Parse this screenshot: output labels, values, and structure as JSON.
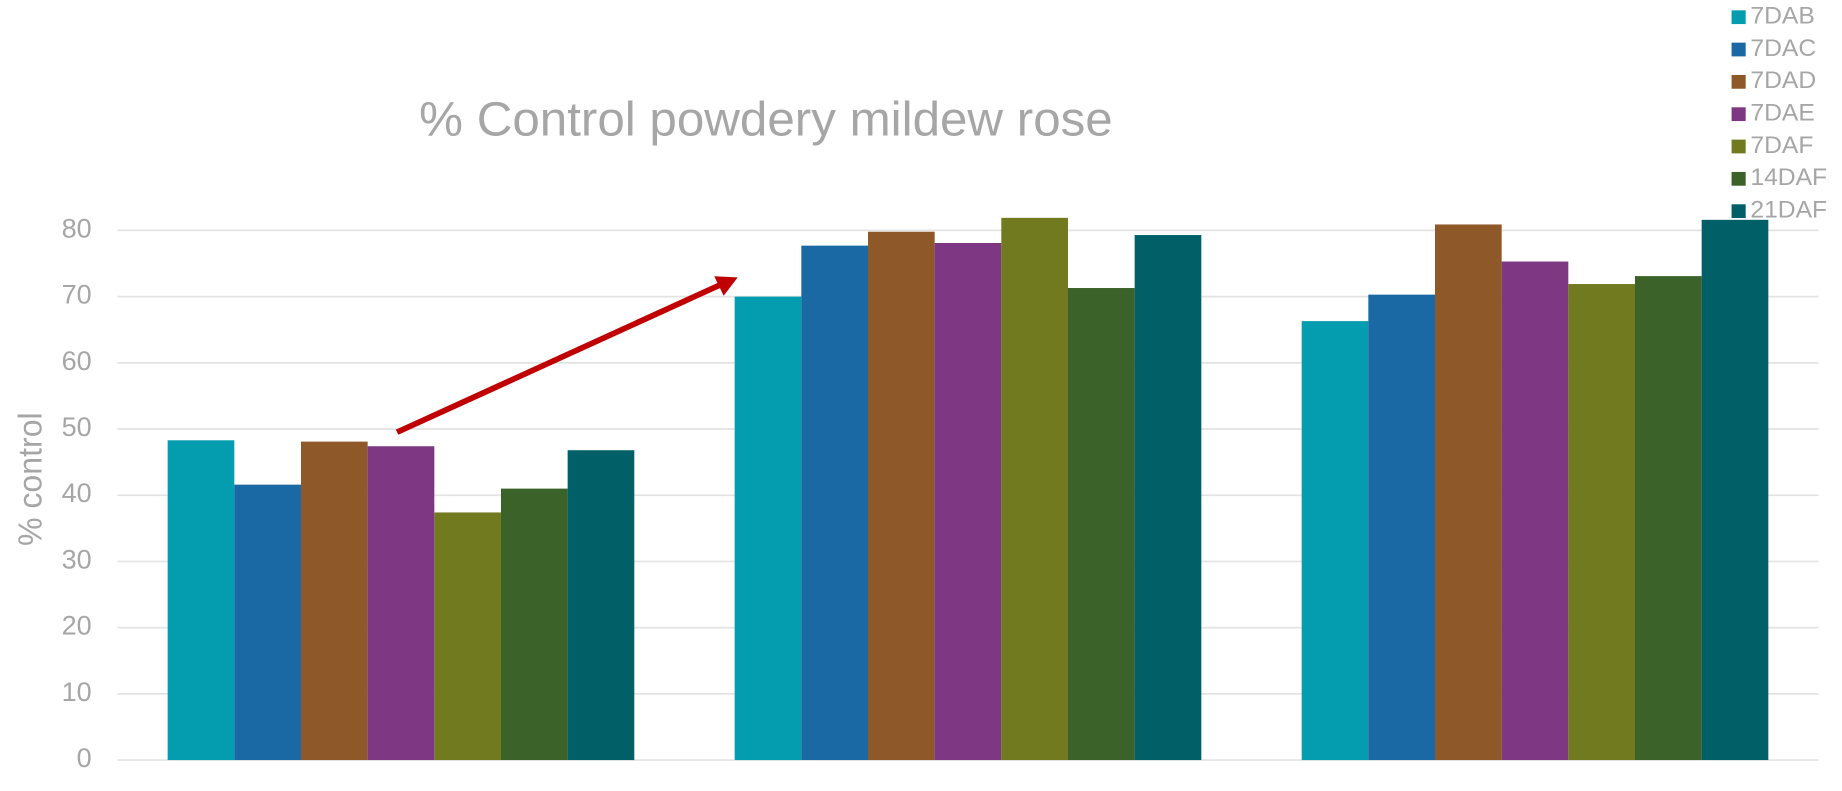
{
  "chart_data": {
    "type": "bar",
    "title": "% Control powdery mildew rose",
    "y_label": "% control",
    "categories": [
      null,
      null,
      null
    ],
    "series": [
      {
        "name": "7DAB",
        "color": "#049daf",
        "values": [
          48.3,
          70.0,
          66.3
        ]
      },
      {
        "name": "7DAC",
        "color": "#1a69a5",
        "values": [
          41.6,
          77.7,
          70.3
        ]
      },
      {
        "name": "7DAD",
        "color": "#8e5829",
        "values": [
          48.1,
          79.8,
          80.9
        ]
      },
      {
        "name": "7DAE",
        "color": "#7e3883",
        "values": [
          47.4,
          78.1,
          75.3
        ]
      },
      {
        "name": "7DAF",
        "color": "#717a1f",
        "values": [
          37.4,
          81.9,
          71.9
        ]
      },
      {
        "name": "14DAF",
        "color": "#3a6229",
        "values": [
          41.0,
          71.3,
          73.1
        ]
      },
      {
        "name": "21DAF",
        "color": "#015f68",
        "values": [
          46.8,
          79.3,
          81.6
        ]
      }
    ],
    "ylim": [
      0,
      80
    ],
    "yticks": [
      0,
      10,
      20,
      30,
      40,
      50,
      60,
      70,
      80
    ],
    "grid": true,
    "legend": "top-right"
  }
}
